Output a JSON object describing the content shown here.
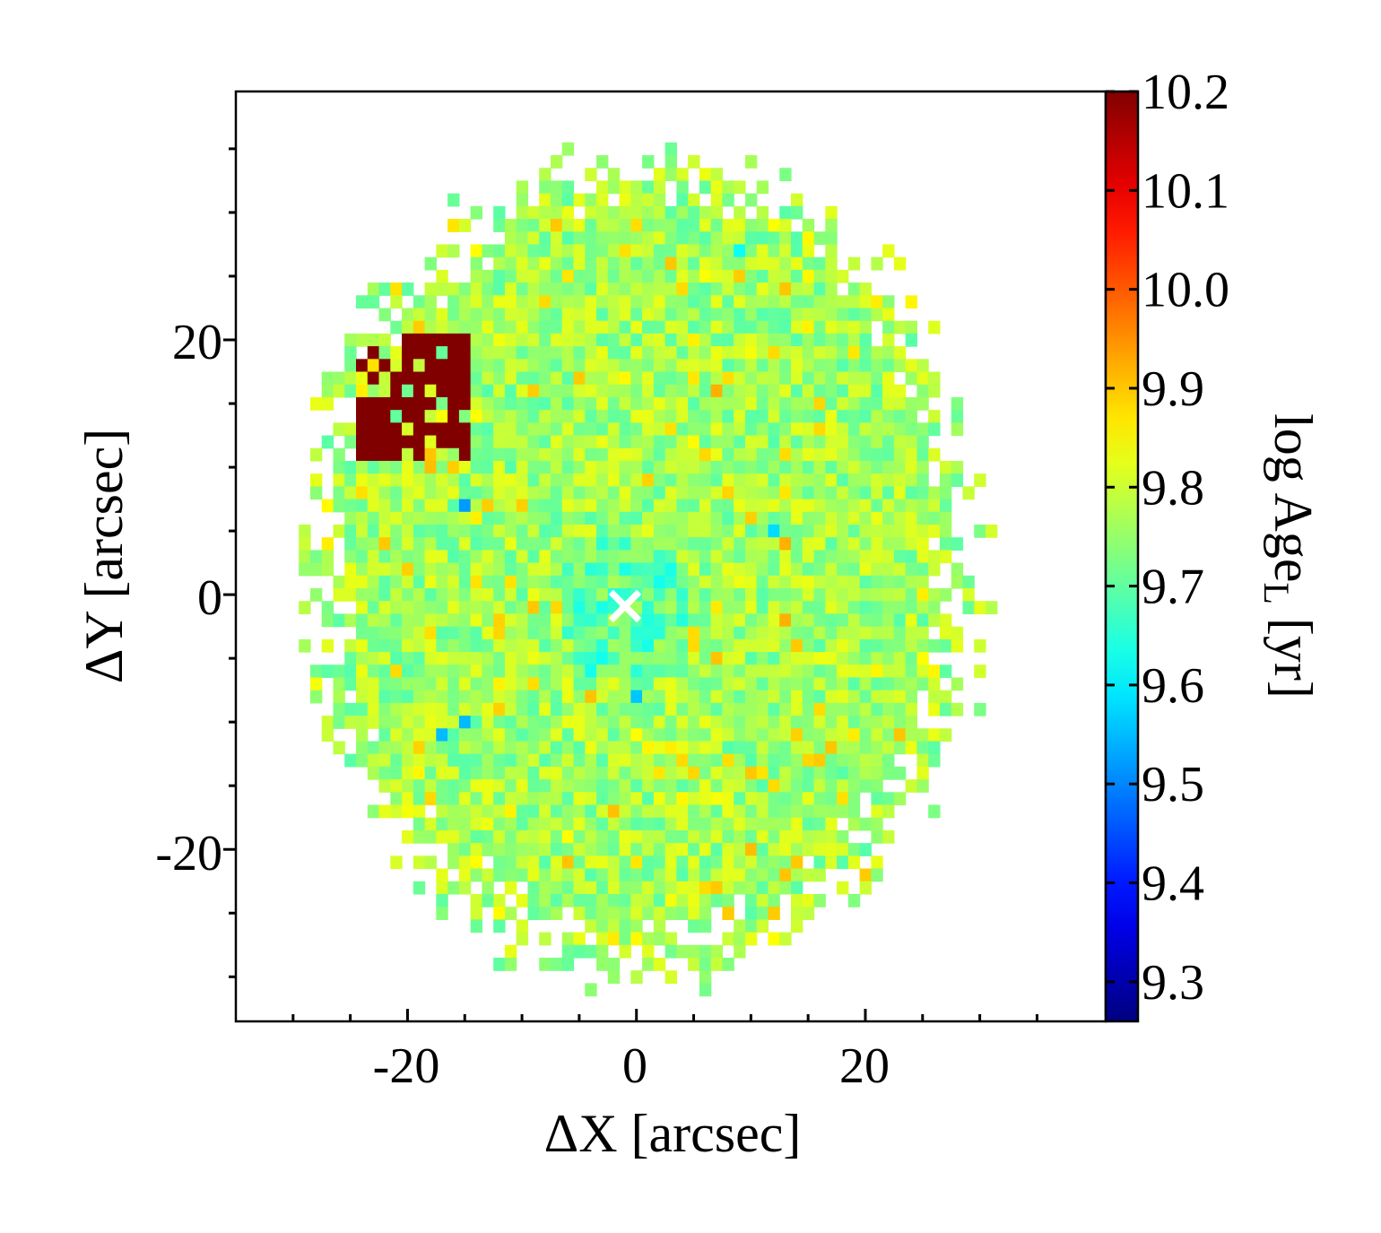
{
  "chart_data": {
    "type": "heatmap",
    "title": "",
    "xlabel": "ΔX [arcsec]",
    "ylabel": "ΔY [arcsec]",
    "xlim": [
      -35,
      41
    ],
    "ylim": [
      -33.5,
      39.5
    ],
    "x_ticks": [
      -20,
      0,
      20
    ],
    "x_tick_labels": [
      "-20",
      "0",
      "20"
    ],
    "y_ticks": [
      -20,
      0,
      20
    ],
    "y_tick_labels": [
      "-20",
      "0",
      "20"
    ],
    "colorbar": {
      "label": "log Age",
      "label_subscript": "L",
      "label_unit": " [yr]",
      "colormap": "jet",
      "range": [
        9.26,
        10.2
      ],
      "ticks": [
        9.3,
        9.4,
        9.5,
        9.6,
        9.7,
        9.8,
        9.9,
        10.0,
        10.1,
        10.2
      ],
      "tick_labels": [
        "9.3",
        "9.4",
        "9.5",
        "9.6",
        "9.7",
        "9.8",
        "9.9",
        "10.0",
        "10.1",
        "10.2"
      ]
    },
    "pixel_size_arcsec": 1.0,
    "field_extent_arcsec": {
      "x": [
        -32,
        33
      ],
      "y": [
        -33,
        37
      ]
    },
    "typical_value": 9.76,
    "center_marker": {
      "x": -1,
      "y": -1,
      "symbol": "×",
      "color": "#ffffff"
    },
    "old_region": {
      "x_range": [
        -24,
        -15
      ],
      "y_range": [
        11,
        20
      ],
      "value": 10.2
    },
    "notable_young_pixels": [
      {
        "x": -17,
        "y": -11,
        "value": 9.55
      },
      {
        "x": -15,
        "y": -10,
        "value": 9.55
      },
      {
        "x": -15,
        "y": 7,
        "value": 9.52
      },
      {
        "x": 0,
        "y": -8,
        "value": 9.56
      },
      {
        "x": 12,
        "y": 5,
        "value": 9.58
      },
      {
        "x": 9,
        "y": 27,
        "value": 9.62
      }
    ],
    "notable_old_pixels": [
      {
        "x": 7,
        "y": 16,
        "value": 9.92
      },
      {
        "x": 13,
        "y": 24,
        "value": 9.9
      },
      {
        "x": 4,
        "y": 24,
        "value": 9.88
      },
      {
        "x": 12,
        "y": -15,
        "value": 9.88
      },
      {
        "x": 0,
        "y": -21,
        "value": 9.87
      },
      {
        "x": 13,
        "y": -2,
        "value": 9.92
      },
      {
        "x": 13,
        "y": 4,
        "value": 9.92
      }
    ]
  }
}
